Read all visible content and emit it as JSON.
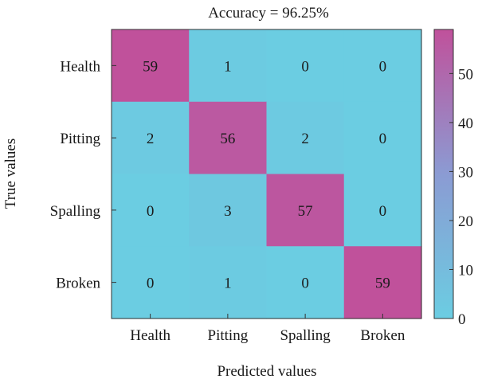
{
  "chart_data": {
    "type": "heatmap",
    "title": "Accuracy = 96.25%",
    "xlabel": "Predicted values",
    "ylabel": "True values",
    "x_categories": [
      "Health",
      "Pitting",
      "Spalling",
      "Broken"
    ],
    "y_categories": [
      "Health",
      "Pitting",
      "Spalling",
      "Broken"
    ],
    "values": [
      [
        59,
        1,
        0,
        0
      ],
      [
        2,
        56,
        2,
        0
      ],
      [
        0,
        3,
        57,
        0
      ],
      [
        0,
        1,
        0,
        59
      ]
    ],
    "colorbar": {
      "range": [
        0,
        59
      ],
      "ticks": [
        0,
        10,
        20,
        30,
        40,
        50
      ],
      "tick_labels": [
        "0",
        "10",
        "20",
        "30",
        "40",
        "50"
      ],
      "low_color": "#6bcde2",
      "mid_color": "#8b9bd3",
      "high_color": "#c0519b"
    },
    "grid": false,
    "legend": "colorbar-right"
  }
}
